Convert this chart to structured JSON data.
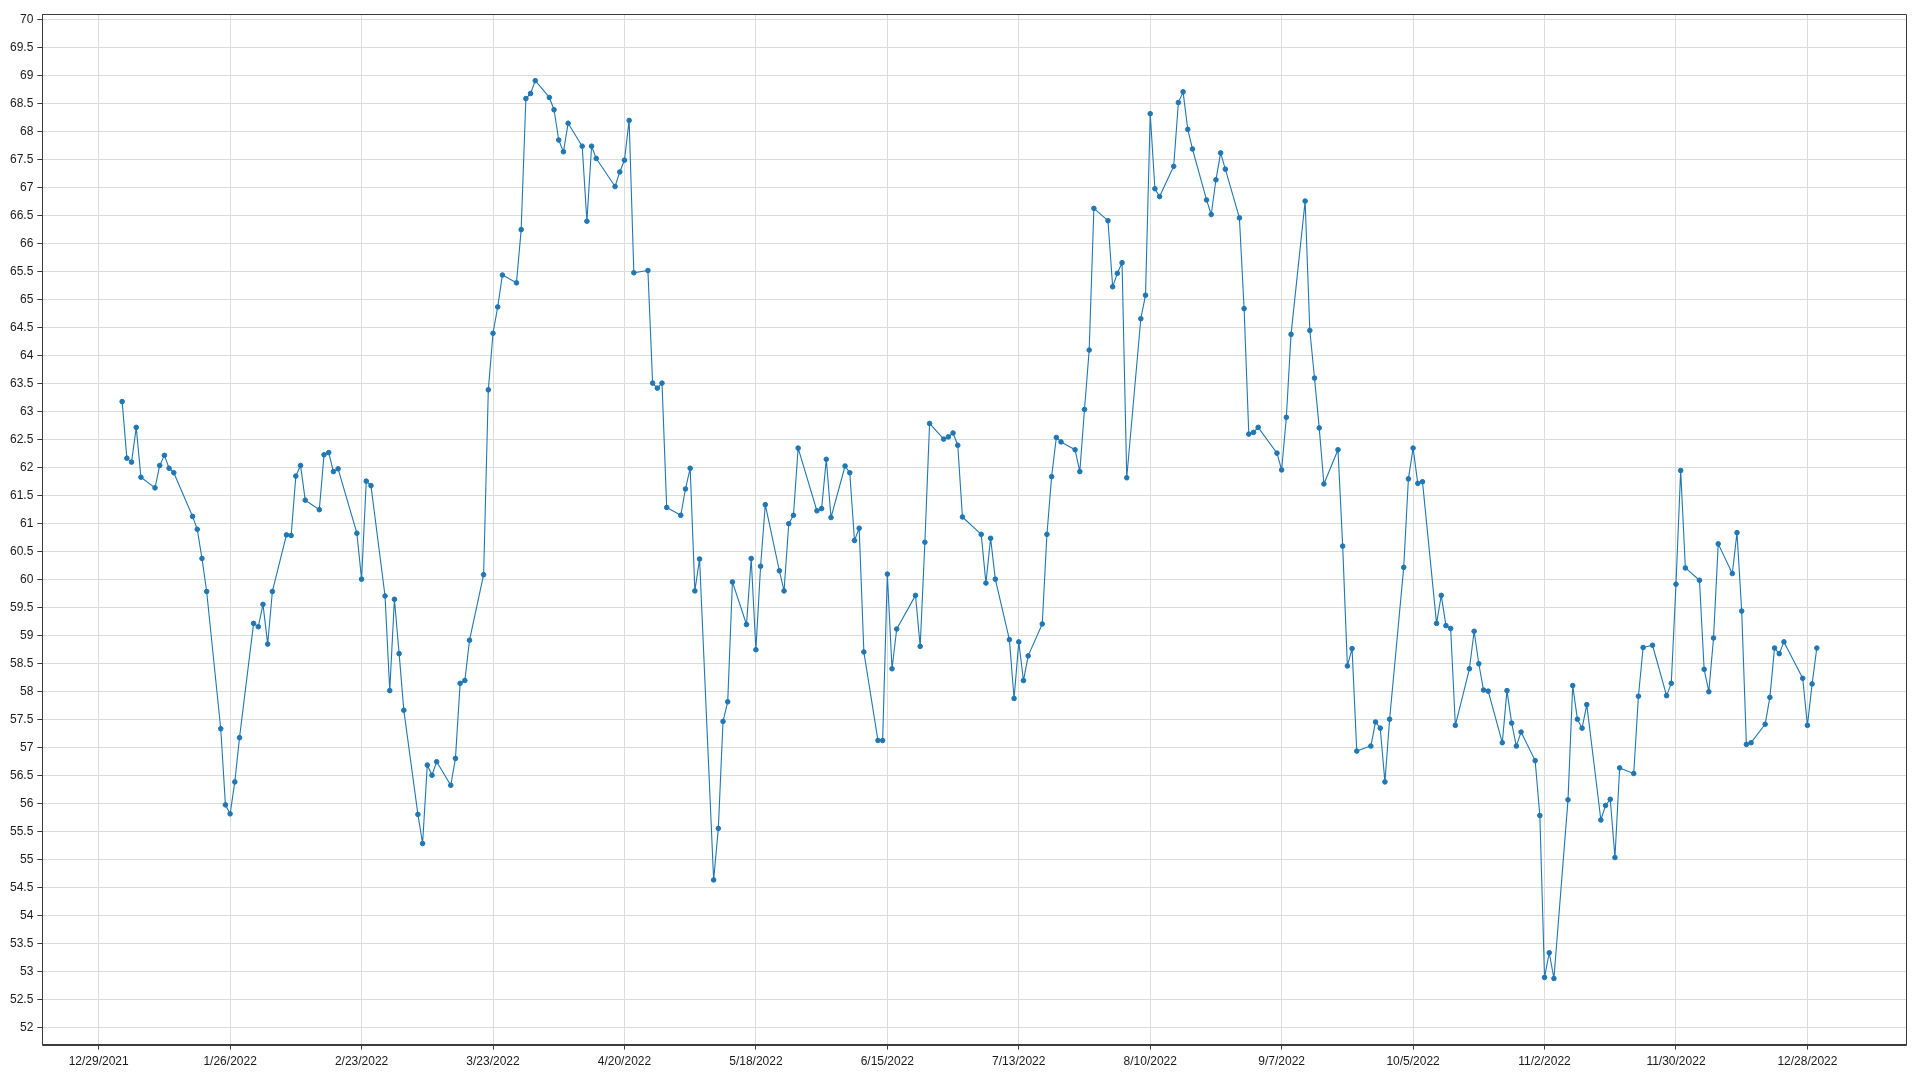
{
  "chart_data": {
    "type": "line",
    "x": [
      "2022-01-03",
      "2022-01-04",
      "2022-01-05",
      "2022-01-06",
      "2022-01-07",
      "2022-01-10",
      "2022-01-11",
      "2022-01-12",
      "2022-01-13",
      "2022-01-14",
      "2022-01-18",
      "2022-01-19",
      "2022-01-20",
      "2022-01-21",
      "2022-01-24",
      "2022-01-25",
      "2022-01-26",
      "2022-01-27",
      "2022-01-28",
      "2022-01-31",
      "2022-02-01",
      "2022-02-02",
      "2022-02-03",
      "2022-02-04",
      "2022-02-07",
      "2022-02-08",
      "2022-02-09",
      "2022-02-10",
      "2022-02-11",
      "2022-02-14",
      "2022-02-15",
      "2022-02-16",
      "2022-02-17",
      "2022-02-18",
      "2022-02-22",
      "2022-02-23",
      "2022-02-24",
      "2022-02-25",
      "2022-02-28",
      "2022-03-01",
      "2022-03-02",
      "2022-03-03",
      "2022-03-04",
      "2022-03-07",
      "2022-03-08",
      "2022-03-09",
      "2022-03-10",
      "2022-03-11",
      "2022-03-14",
      "2022-03-15",
      "2022-03-16",
      "2022-03-17",
      "2022-03-18",
      "2022-03-21",
      "2022-03-22",
      "2022-03-23",
      "2022-03-24",
      "2022-03-25",
      "2022-03-28",
      "2022-03-29",
      "2022-03-30",
      "2022-03-31",
      "2022-04-01",
      "2022-04-04",
      "2022-04-05",
      "2022-04-06",
      "2022-04-07",
      "2022-04-08",
      "2022-04-11",
      "2022-04-12",
      "2022-04-13",
      "2022-04-14",
      "2022-04-18",
      "2022-04-19",
      "2022-04-20",
      "2022-04-21",
      "2022-04-22",
      "2022-04-25",
      "2022-04-26",
      "2022-04-27",
      "2022-04-28",
      "2022-04-29",
      "2022-05-02",
      "2022-05-03",
      "2022-05-04",
      "2022-05-05",
      "2022-05-06",
      "2022-05-09",
      "2022-05-10",
      "2022-05-11",
      "2022-05-12",
      "2022-05-13",
      "2022-05-16",
      "2022-05-17",
      "2022-05-18",
      "2022-05-19",
      "2022-05-20",
      "2022-05-23",
      "2022-05-24",
      "2022-05-25",
      "2022-05-26",
      "2022-05-27",
      "2022-05-31",
      "2022-06-01",
      "2022-06-02",
      "2022-06-03",
      "2022-06-06",
      "2022-06-07",
      "2022-06-08",
      "2022-06-09",
      "2022-06-10",
      "2022-06-13",
      "2022-06-14",
      "2022-06-15",
      "2022-06-16",
      "2022-06-17",
      "2022-06-21",
      "2022-06-22",
      "2022-06-23",
      "2022-06-24",
      "2022-06-27",
      "2022-06-28",
      "2022-06-29",
      "2022-06-30",
      "2022-07-01",
      "2022-07-05",
      "2022-07-06",
      "2022-07-07",
      "2022-07-08",
      "2022-07-11",
      "2022-07-12",
      "2022-07-13",
      "2022-07-14",
      "2022-07-15",
      "2022-07-18",
      "2022-07-19",
      "2022-07-20",
      "2022-07-21",
      "2022-07-22",
      "2022-07-25",
      "2022-07-26",
      "2022-07-27",
      "2022-07-28",
      "2022-07-29",
      "2022-08-01",
      "2022-08-02",
      "2022-08-03",
      "2022-08-04",
      "2022-08-05",
      "2022-08-08",
      "2022-08-09",
      "2022-08-10",
      "2022-08-11",
      "2022-08-12",
      "2022-08-15",
      "2022-08-16",
      "2022-08-17",
      "2022-08-18",
      "2022-08-19",
      "2022-08-22",
      "2022-08-23",
      "2022-08-24",
      "2022-08-25",
      "2022-08-26",
      "2022-08-29",
      "2022-08-30",
      "2022-08-31",
      "2022-09-01",
      "2022-09-02",
      "2022-09-06",
      "2022-09-07",
      "2022-09-08",
      "2022-09-09",
      "2022-09-12",
      "2022-09-13",
      "2022-09-14",
      "2022-09-15",
      "2022-09-16",
      "2022-09-19",
      "2022-09-20",
      "2022-09-21",
      "2022-09-22",
      "2022-09-23",
      "2022-09-26",
      "2022-09-27",
      "2022-09-28",
      "2022-09-29",
      "2022-09-30",
      "2022-10-03",
      "2022-10-04",
      "2022-10-05",
      "2022-10-06",
      "2022-10-07",
      "2022-10-10",
      "2022-10-11",
      "2022-10-12",
      "2022-10-13",
      "2022-10-14",
      "2022-10-17",
      "2022-10-18",
      "2022-10-19",
      "2022-10-20",
      "2022-10-21",
      "2022-10-24",
      "2022-10-25",
      "2022-10-26",
      "2022-10-27",
      "2022-10-28",
      "2022-10-31",
      "2022-11-01",
      "2022-11-02",
      "2022-11-03",
      "2022-11-04",
      "2022-11-07",
      "2022-11-08",
      "2022-11-09",
      "2022-11-10",
      "2022-11-11",
      "2022-11-14",
      "2022-11-15",
      "2022-11-16",
      "2022-11-17",
      "2022-11-18",
      "2022-11-21",
      "2022-11-22",
      "2022-11-23",
      "2022-11-25",
      "2022-11-28",
      "2022-11-29",
      "2022-11-30",
      "2022-12-01",
      "2022-12-02",
      "2022-12-05",
      "2022-12-06",
      "2022-12-07",
      "2022-12-08",
      "2022-12-09",
      "2022-12-12",
      "2022-12-13",
      "2022-12-14",
      "2022-12-15",
      "2022-12-16",
      "2022-12-19",
      "2022-12-20",
      "2022-12-21",
      "2022-12-22",
      "2022-12-23",
      "2022-12-27",
      "2022-12-28",
      "2022-12-29",
      "2022-12-30"
    ],
    "series": [
      {
        "color": "#1f77b4",
        "values": [
          63.18,
          62.17,
          62.1,
          62.72,
          61.83,
          61.64,
          62.04,
          62.22,
          61.99,
          61.91,
          61.13,
          60.9,
          60.38,
          59.79,
          57.34,
          55.98,
          55.82,
          56.39,
          57.18,
          59.22,
          59.16,
          59.56,
          58.85,
          59.79,
          60.8,
          60.79,
          61.85,
          62.04,
          61.42,
          61.25,
          62.23,
          62.27,
          61.93,
          61.98,
          60.83,
          60.01,
          61.76,
          61.68,
          59.71,
          58.02,
          59.65,
          58.68,
          57.67,
          55.81,
          55.29,
          56.69,
          56.51,
          56.75,
          56.33,
          56.81,
          58.15,
          58.2,
          58.92,
          60.09,
          63.39,
          64.4,
          64.87,
          65.44,
          65.3,
          66.25,
          68.59,
          68.68,
          68.91,
          68.61,
          68.39,
          67.85,
          67.64,
          68.15,
          67.74,
          66.4,
          67.74,
          67.52,
          67.02,
          67.28,
          67.49,
          68.2,
          65.48,
          65.52,
          63.51,
          63.42,
          63.51,
          61.29,
          61.15,
          61.62,
          61.99,
          59.8,
          60.37,
          54.64,
          55.56,
          57.47,
          57.82,
          59.96,
          59.2,
          60.38,
          58.75,
          60.24,
          61.34,
          60.16,
          59.8,
          61.0,
          61.15,
          62.35,
          61.23,
          61.27,
          62.15,
          61.11,
          62.03,
          61.91,
          60.7,
          60.92,
          58.71,
          57.13,
          57.13,
          60.1,
          58.41,
          59.12,
          59.72,
          58.81,
          60.67,
          62.79,
          62.51,
          62.55,
          62.62,
          62.4,
          61.12,
          60.81,
          59.94,
          60.74,
          60.01,
          58.93,
          57.88,
          58.89,
          58.2,
          58.64,
          59.21,
          60.81,
          61.84,
          62.54,
          62.46,
          62.32,
          61.93,
          63.04,
          64.1,
          66.63,
          66.41,
          65.23,
          65.47,
          65.66,
          61.82,
          64.66,
          65.08,
          68.32,
          66.98,
          66.84,
          67.38,
          68.52,
          68.71,
          68.04,
          67.69,
          66.78,
          66.52,
          67.14,
          67.62,
          67.33,
          66.46,
          64.84,
          62.6,
          62.63,
          62.72,
          62.26,
          61.96,
          62.9,
          64.38,
          66.76,
          64.45,
          63.6,
          62.71,
          61.71,
          62.32,
          60.6,
          58.46,
          58.77,
          56.94,
          57.03,
          57.46,
          57.35,
          56.39,
          57.51,
          60.22,
          61.8,
          62.35,
          61.72,
          61.75,
          59.22,
          59.72,
          59.18,
          59.13,
          57.4,
          58.41,
          59.08,
          58.5,
          58.03,
          58.01,
          57.09,
          58.02,
          57.44,
          57.03,
          57.28,
          56.77,
          55.79,
          52.9,
          53.34,
          52.88,
          56.07,
          58.11,
          57.51,
          57.35,
          57.77,
          55.71,
          55.97,
          56.08,
          55.04,
          56.64,
          56.54,
          57.92,
          58.79,
          58.83,
          57.93,
          58.15,
          59.92,
          61.95,
          60.21,
          59.99,
          58.4,
          58.0,
          58.96,
          60.64,
          60.11,
          60.84,
          59.44,
          57.06,
          57.09,
          57.42,
          57.9,
          58.78,
          58.68,
          58.89,
          58.24,
          57.4,
          58.14,
          58.78
        ]
      }
    ],
    "xlim": [
      "2021-12-17",
      "2023-01-18"
    ],
    "xticks": [
      {
        "value": "2021-12-29",
        "label": "12/29/2021"
      },
      {
        "value": "2022-01-26",
        "label": "1/26/2022"
      },
      {
        "value": "2022-02-23",
        "label": "2/23/2022"
      },
      {
        "value": "2022-03-23",
        "label": "3/23/2022"
      },
      {
        "value": "2022-04-20",
        "label": "4/20/2022"
      },
      {
        "value": "2022-05-18",
        "label": "5/18/2022"
      },
      {
        "value": "2022-06-15",
        "label": "6/15/2022"
      },
      {
        "value": "2022-07-13",
        "label": "7/13/2022"
      },
      {
        "value": "2022-08-10",
        "label": "8/10/2022"
      },
      {
        "value": "2022-09-07",
        "label": "9/7/2022"
      },
      {
        "value": "2022-10-05",
        "label": "10/5/2022"
      },
      {
        "value": "2022-11-02",
        "label": "11/2/2022"
      },
      {
        "value": "2022-11-30",
        "label": "11/30/2022"
      },
      {
        "value": "2022-12-28",
        "label": "12/28/2022"
      }
    ],
    "ylim": [
      51.7,
      70.1
    ],
    "yticks": [
      52,
      52.5,
      53,
      53.5,
      54,
      54.5,
      55,
      55.5,
      56,
      56.5,
      57,
      57.5,
      58,
      58.5,
      59,
      59.5,
      60,
      60.5,
      61,
      61.5,
      62,
      62.5,
      63,
      63.5,
      64,
      64.5,
      65,
      65.5,
      66,
      66.5,
      67,
      67.5,
      68,
      68.5,
      69,
      69.5,
      70
    ],
    "grid": true,
    "marker": "circle",
    "line_style": "solid"
  }
}
